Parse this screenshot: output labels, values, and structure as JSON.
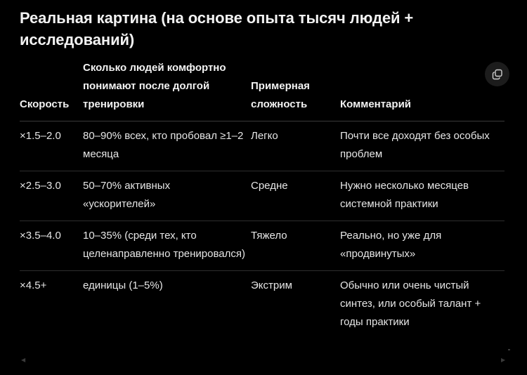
{
  "heading": "Реальная картина (на основе опыта тысяч людей + исследований)",
  "table": {
    "headers": [
      "Скорость",
      "Сколько людей комфортно понимают после долгой тренировки",
      "Примерная сложность",
      "Комментарий"
    ],
    "rows": [
      [
        "×1.5–2.0",
        "80–90% всех, кто пробовал ≥1–2 месяца",
        "Легко",
        "Почти все доходят без особых проблем"
      ],
      [
        "×2.5–3.0",
        "50–70% активных «ускорителей»",
        "Средне",
        "Нужно несколько месяцев системной практики"
      ],
      [
        "×3.5–4.0",
        "10–35% (среди тех, кто целенаправленно тренировался)",
        "Тяжело",
        "Реально, но уже для «продвинутых»"
      ],
      [
        "×4.5+",
        "единицы (1–5%)",
        "Экстрим",
        "Обычно или очень чистый синтез, или особый талант + годы практики"
      ]
    ]
  },
  "icons": {
    "copy": "copy-icon",
    "scroll_left": "chevron-left-icon",
    "scroll_right": "chevron-right-icon"
  },
  "colors": {
    "background": "#000000",
    "text": "#ececec",
    "divider": "#2e2e2e",
    "button_bg": "#1c1c1c"
  }
}
